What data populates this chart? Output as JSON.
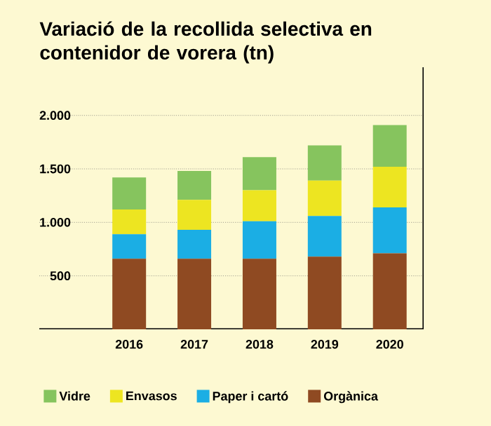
{
  "chart_data": {
    "type": "bar",
    "stacked": true,
    "title": "Variació de la recollida selectiva en contenidor de vorera (tn)",
    "categories": [
      "2016",
      "2017",
      "2018",
      "2019",
      "2020"
    ],
    "series": [
      {
        "name": "Orgànica",
        "color": "#8f4a22",
        "values": [
          660,
          660,
          660,
          680,
          710
        ]
      },
      {
        "name": "Paper i cartó",
        "color": "#1baee4",
        "values": [
          230,
          270,
          350,
          380,
          430
        ]
      },
      {
        "name": "Envasos",
        "color": "#ede521",
        "values": [
          230,
          280,
          290,
          330,
          380
        ]
      },
      {
        "name": "Vidre",
        "color": "#86c45e",
        "values": [
          300,
          270,
          310,
          330,
          390
        ]
      }
    ],
    "ylim": [
      0,
      2450
    ],
    "yticks": [
      {
        "value": 500,
        "label": "500"
      },
      {
        "value": 1000,
        "label": "1.000"
      },
      {
        "value": 1500,
        "label": "1.500"
      },
      {
        "value": 2000,
        "label": "2.000"
      }
    ],
    "grid": "y",
    "legend": "bottom"
  }
}
